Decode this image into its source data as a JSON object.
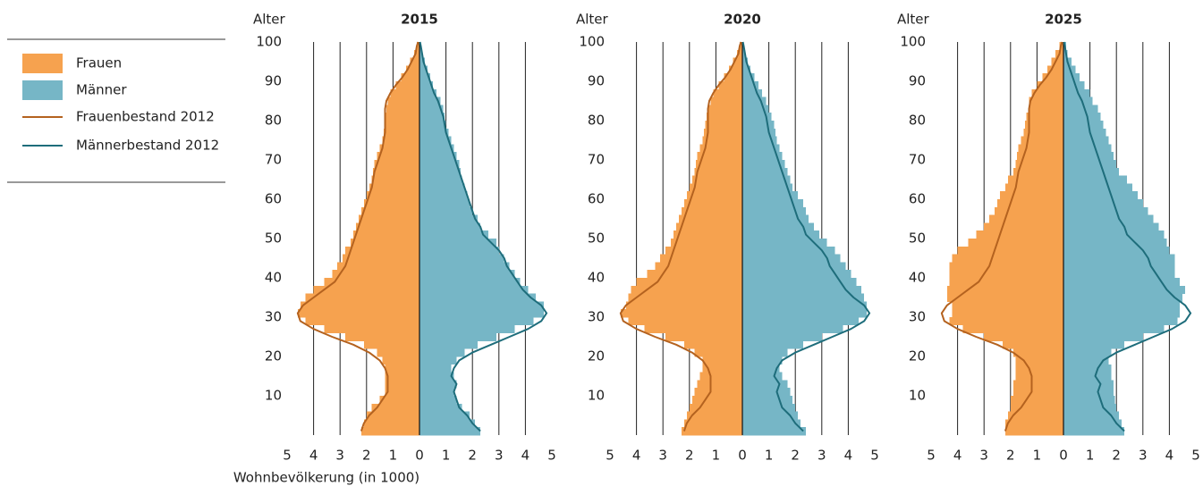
{
  "chart_data": [
    {
      "type": "bar",
      "title": "2015",
      "ylabel": "Alter",
      "xlabel": "Wohnbevölkerung (in 1000)",
      "y": [
        0,
        2,
        4,
        6,
        8,
        10,
        12,
        14,
        16,
        18,
        20,
        22,
        24,
        26,
        28,
        30,
        32,
        34,
        36,
        38,
        40,
        42,
        44,
        46,
        48,
        50,
        52,
        54,
        56,
        58,
        60,
        62,
        64,
        66,
        68,
        70,
        72,
        74,
        76,
        78,
        80,
        82,
        84,
        86,
        88,
        90,
        92,
        94,
        96,
        98,
        100
      ],
      "ylim": [
        0,
        100
      ],
      "yticks": [
        10,
        20,
        30,
        40,
        50,
        60,
        70,
        80,
        90,
        100
      ],
      "xlim": [
        -5,
        5
      ],
      "xticks": [
        {
          "value": -5,
          "label": "5"
        },
        {
          "value": -4,
          "label": "4"
        },
        {
          "value": -3,
          "label": "3"
        },
        {
          "value": -2,
          "label": "2"
        },
        {
          "value": -1,
          "label": "1"
        },
        0,
        1,
        2,
        3,
        4,
        5
      ],
      "grid": true,
      "series": [
        {
          "name": "Frauen",
          "style": "bar",
          "side": "left",
          "color": "#f6a24f",
          "values": [
            2.2,
            2.1,
            2.0,
            1.8,
            1.5,
            1.3,
            1.3,
            1.3,
            1.3,
            1.4,
            1.6,
            2.1,
            2.8,
            3.6,
            4.3,
            4.6,
            4.5,
            4.3,
            4.0,
            3.6,
            3.3,
            3.1,
            2.9,
            2.8,
            2.6,
            2.5,
            2.4,
            2.3,
            2.2,
            2.1,
            2.0,
            1.9,
            1.8,
            1.75,
            1.7,
            1.6,
            1.5,
            1.4,
            1.35,
            1.3,
            1.3,
            1.25,
            1.2,
            1.1,
            0.9,
            0.7,
            0.5,
            0.35,
            0.2,
            0.1,
            0.1
          ]
        },
        {
          "name": "Männer",
          "style": "bar",
          "side": "right",
          "color": "#76b6c6",
          "values": [
            2.3,
            2.1,
            1.9,
            1.6,
            1.4,
            1.3,
            1.4,
            1.3,
            1.2,
            1.4,
            1.7,
            2.2,
            2.9,
            3.6,
            4.3,
            4.7,
            4.7,
            4.4,
            4.1,
            3.8,
            3.6,
            3.4,
            3.2,
            3.0,
            2.9,
            2.6,
            2.3,
            2.2,
            2.0,
            1.9,
            1.8,
            1.7,
            1.6,
            1.55,
            1.5,
            1.4,
            1.3,
            1.2,
            1.1,
            1.0,
            0.95,
            0.9,
            0.8,
            0.65,
            0.5,
            0.4,
            0.3,
            0.2,
            0.1,
            0.05,
            0.05
          ]
        },
        {
          "name": "Frauenbestand 2012",
          "style": "line",
          "side": "left",
          "color": "#b4621f",
          "values": [
            2.2,
            2.1,
            1.9,
            1.6,
            1.4,
            1.2,
            1.2,
            1.2,
            1.3,
            1.5,
            1.9,
            2.5,
            3.3,
            4.0,
            4.5,
            4.6,
            4.4,
            4.0,
            3.6,
            3.2,
            3.0,
            2.8,
            2.7,
            2.6,
            2.5,
            2.4,
            2.3,
            2.2,
            2.1,
            2.0,
            1.9,
            1.8,
            1.75,
            1.7,
            1.6,
            1.5,
            1.4,
            1.35,
            1.3,
            1.3,
            1.3,
            1.3,
            1.25,
            1.1,
            0.9,
            0.65,
            0.45,
            0.3,
            0.15,
            0.1,
            0.05
          ]
        },
        {
          "name": "Männerbestand 2012",
          "style": "line",
          "side": "right",
          "color": "#1e6d7b",
          "values": [
            2.3,
            2.0,
            1.8,
            1.5,
            1.4,
            1.3,
            1.4,
            1.2,
            1.3,
            1.5,
            2.0,
            2.7,
            3.4,
            4.1,
            4.6,
            4.8,
            4.6,
            4.2,
            3.9,
            3.7,
            3.5,
            3.3,
            3.2,
            3.0,
            2.7,
            2.4,
            2.3,
            2.1,
            2.0,
            1.9,
            1.8,
            1.7,
            1.6,
            1.5,
            1.4,
            1.3,
            1.2,
            1.1,
            1.0,
            0.95,
            0.9,
            0.8,
            0.7,
            0.55,
            0.45,
            0.35,
            0.25,
            0.15,
            0.1,
            0.05,
            0.02
          ]
        }
      ]
    },
    {
      "type": "bar",
      "title": "2020",
      "ylabel": "Alter",
      "y": [
        0,
        2,
        4,
        6,
        8,
        10,
        12,
        14,
        16,
        18,
        20,
        22,
        24,
        26,
        28,
        30,
        32,
        34,
        36,
        38,
        40,
        42,
        44,
        46,
        48,
        50,
        52,
        54,
        56,
        58,
        60,
        62,
        64,
        66,
        68,
        70,
        72,
        74,
        76,
        78,
        80,
        82,
        84,
        86,
        88,
        90,
        92,
        94,
        96,
        98,
        100
      ],
      "ylim": [
        0,
        100
      ],
      "yticks": [
        10,
        20,
        30,
        40,
        50,
        60,
        70,
        80,
        90,
        100
      ],
      "xlim": [
        -5,
        5
      ],
      "xticks": [
        {
          "value": -5,
          "label": "5"
        },
        {
          "value": -4,
          "label": "4"
        },
        {
          "value": -3,
          "label": "3"
        },
        {
          "value": -2,
          "label": "2"
        },
        {
          "value": -1,
          "label": "1"
        },
        0,
        1,
        2,
        3,
        4,
        5
      ],
      "grid": true,
      "series": [
        {
          "style": "bar",
          "side": "left",
          "color": "#f6a24f",
          "values": [
            2.3,
            2.2,
            2.1,
            2.0,
            1.9,
            1.8,
            1.7,
            1.6,
            1.5,
            1.5,
            1.8,
            2.2,
            2.9,
            3.7,
            4.3,
            4.6,
            4.4,
            4.3,
            4.2,
            4.0,
            3.6,
            3.3,
            3.1,
            2.9,
            2.7,
            2.6,
            2.5,
            2.4,
            2.3,
            2.2,
            2.1,
            2.0,
            1.9,
            1.8,
            1.75,
            1.7,
            1.6,
            1.5,
            1.45,
            1.4,
            1.35,
            1.3,
            1.2,
            1.1,
            0.9,
            0.7,
            0.5,
            0.35,
            0.2,
            0.1,
            0.1
          ]
        },
        {
          "style": "bar",
          "side": "right",
          "color": "#76b6c6",
          "values": [
            2.4,
            2.2,
            2.1,
            2.0,
            1.9,
            1.8,
            1.7,
            1.5,
            1.4,
            1.5,
            1.7,
            2.3,
            3.0,
            3.8,
            4.4,
            4.7,
            4.7,
            4.6,
            4.5,
            4.3,
            4.1,
            3.9,
            3.7,
            3.5,
            3.2,
            2.9,
            2.7,
            2.5,
            2.4,
            2.3,
            2.1,
            1.9,
            1.8,
            1.7,
            1.6,
            1.5,
            1.4,
            1.3,
            1.25,
            1.2,
            1.1,
            1.0,
            0.9,
            0.75,
            0.6,
            0.45,
            0.3,
            0.2,
            0.1,
            0.05,
            0.05
          ]
        },
        {
          "style": "line",
          "side": "left",
          "color": "#b4621f",
          "values": [
            2.2,
            2.1,
            1.9,
            1.6,
            1.4,
            1.2,
            1.2,
            1.2,
            1.3,
            1.5,
            1.9,
            2.5,
            3.3,
            4.0,
            4.5,
            4.6,
            4.4,
            4.0,
            3.6,
            3.2,
            3.0,
            2.8,
            2.7,
            2.6,
            2.5,
            2.4,
            2.3,
            2.2,
            2.1,
            2.0,
            1.9,
            1.8,
            1.75,
            1.7,
            1.6,
            1.5,
            1.4,
            1.35,
            1.3,
            1.3,
            1.3,
            1.3,
            1.25,
            1.1,
            0.9,
            0.65,
            0.45,
            0.3,
            0.15,
            0.1,
            0.05
          ]
        },
        {
          "style": "line",
          "side": "right",
          "color": "#1e6d7b",
          "values": [
            2.3,
            2.0,
            1.8,
            1.5,
            1.4,
            1.3,
            1.4,
            1.2,
            1.3,
            1.5,
            2.0,
            2.7,
            3.4,
            4.1,
            4.6,
            4.8,
            4.6,
            4.2,
            3.9,
            3.7,
            3.5,
            3.3,
            3.2,
            3.0,
            2.7,
            2.4,
            2.3,
            2.1,
            2.0,
            1.9,
            1.8,
            1.7,
            1.6,
            1.5,
            1.4,
            1.3,
            1.2,
            1.1,
            1.0,
            0.95,
            0.9,
            0.8,
            0.7,
            0.55,
            0.45,
            0.35,
            0.25,
            0.15,
            0.1,
            0.05,
            0.02
          ]
        }
      ]
    },
    {
      "type": "bar",
      "title": "2025",
      "ylabel": "Alter",
      "y": [
        0,
        2,
        4,
        6,
        8,
        10,
        12,
        14,
        16,
        18,
        20,
        22,
        24,
        26,
        28,
        30,
        32,
        34,
        36,
        38,
        40,
        42,
        44,
        46,
        48,
        50,
        52,
        54,
        56,
        58,
        60,
        62,
        64,
        66,
        68,
        70,
        72,
        74,
        76,
        78,
        80,
        82,
        84,
        86,
        88,
        90,
        92,
        94,
        96,
        98,
        100
      ],
      "ylim": [
        0,
        100
      ],
      "yticks": [
        10,
        20,
        30,
        40,
        50,
        60,
        70,
        80,
        90,
        100
      ],
      "xlim": [
        -5,
        5
      ],
      "xticks": [
        {
          "value": -5,
          "label": "5"
        },
        {
          "value": -4,
          "label": "4"
        },
        {
          "value": -3,
          "label": "3"
        },
        {
          "value": -2,
          "label": "2"
        },
        {
          "value": -1,
          "label": "1"
        },
        0,
        1,
        2,
        3,
        4,
        5
      ],
      "grid": true,
      "series": [
        {
          "style": "bar",
          "side": "left",
          "color": "#f6a24f",
          "values": [
            2.2,
            2.2,
            2.1,
            2.0,
            2.0,
            1.9,
            1.9,
            1.8,
            1.8,
            1.8,
            1.9,
            2.3,
            3.0,
            3.8,
            4.3,
            4.2,
            4.2,
            4.4,
            4.4,
            4.3,
            4.3,
            4.3,
            4.2,
            4.0,
            3.6,
            3.3,
            3.0,
            2.8,
            2.6,
            2.5,
            2.4,
            2.2,
            2.1,
            1.9,
            1.8,
            1.75,
            1.7,
            1.6,
            1.5,
            1.45,
            1.4,
            1.3,
            1.3,
            1.2,
            1.0,
            0.8,
            0.6,
            0.45,
            0.3,
            0.15,
            0.1
          ]
        },
        {
          "style": "bar",
          "side": "right",
          "color": "#76b6c6",
          "values": [
            2.3,
            2.2,
            2.1,
            2.0,
            1.95,
            1.9,
            1.9,
            1.8,
            1.8,
            1.7,
            1.8,
            2.3,
            3.0,
            3.8,
            4.3,
            4.4,
            4.4,
            4.5,
            4.6,
            4.4,
            4.2,
            4.2,
            4.2,
            4.0,
            3.9,
            3.8,
            3.6,
            3.4,
            3.2,
            3.0,
            2.8,
            2.6,
            2.4,
            2.1,
            2.0,
            1.9,
            1.8,
            1.7,
            1.6,
            1.5,
            1.4,
            1.3,
            1.1,
            1.0,
            0.8,
            0.6,
            0.45,
            0.3,
            0.15,
            0.1,
            0.05
          ]
        },
        {
          "style": "line",
          "side": "left",
          "color": "#b4621f",
          "values": [
            2.2,
            2.1,
            1.9,
            1.6,
            1.4,
            1.2,
            1.2,
            1.2,
            1.3,
            1.5,
            1.9,
            2.5,
            3.3,
            4.0,
            4.5,
            4.6,
            4.4,
            4.0,
            3.6,
            3.2,
            3.0,
            2.8,
            2.7,
            2.6,
            2.5,
            2.4,
            2.3,
            2.2,
            2.1,
            2.0,
            1.9,
            1.8,
            1.75,
            1.7,
            1.6,
            1.5,
            1.4,
            1.35,
            1.3,
            1.3,
            1.3,
            1.3,
            1.25,
            1.1,
            0.9,
            0.65,
            0.45,
            0.3,
            0.15,
            0.1,
            0.05
          ]
        },
        {
          "style": "line",
          "side": "right",
          "color": "#1e6d7b",
          "values": [
            2.3,
            2.0,
            1.8,
            1.5,
            1.4,
            1.3,
            1.4,
            1.2,
            1.3,
            1.5,
            2.0,
            2.7,
            3.4,
            4.1,
            4.6,
            4.8,
            4.6,
            4.2,
            3.9,
            3.7,
            3.5,
            3.3,
            3.2,
            3.0,
            2.7,
            2.4,
            2.3,
            2.1,
            2.0,
            1.9,
            1.8,
            1.7,
            1.6,
            1.5,
            1.4,
            1.3,
            1.2,
            1.1,
            1.0,
            0.95,
            0.9,
            0.8,
            0.7,
            0.55,
            0.45,
            0.35,
            0.25,
            0.15,
            0.1,
            0.05,
            0.02
          ]
        }
      ]
    }
  ]
}
